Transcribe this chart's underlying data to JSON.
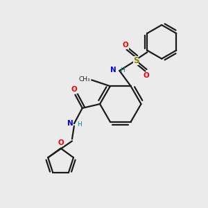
{
  "bg_color": "#ebebeb",
  "line_color": "#1a1a1a",
  "N_color": "#0000ff",
  "O_color": "#ff0000",
  "S_color": "#808000",
  "H_color": "#008b8b",
  "line_width": 1.6,
  "fig_size": [
    3.0,
    3.0
  ],
  "dpi": 100,
  "xlim": [
    0,
    10
  ],
  "ylim": [
    0,
    10
  ]
}
